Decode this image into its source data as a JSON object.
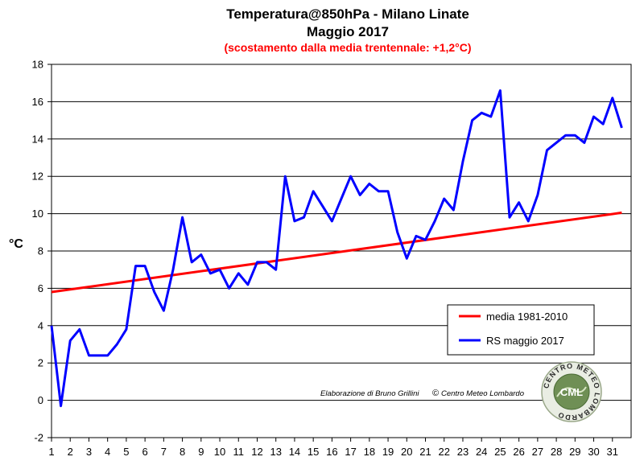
{
  "chart_data": {
    "type": "line",
    "title": "Temperatura@850hPa - Milano Linate",
    "title_line2": "Maggio 2017",
    "subtitle": "(scostamento dalla media trentennale: +1,2°C)",
    "ylabel": "°C",
    "xlabel": "",
    "ylim": [
      -2,
      18
    ],
    "yticks": [
      -2,
      0,
      2,
      4,
      6,
      8,
      10,
      12,
      14,
      16,
      18
    ],
    "x_ticks": [
      "1",
      "2",
      "3",
      "4",
      "5",
      "6",
      "7",
      "8",
      "9",
      "10",
      "11",
      "12",
      "13",
      "14",
      "15",
      "16",
      "17",
      "18",
      "19",
      "20",
      "21",
      "22",
      "23",
      "24",
      "25",
      "26",
      "27",
      "28",
      "29",
      "30",
      "31"
    ],
    "grid": "horizontal",
    "legend_position": "bottom-right",
    "series": [
      {
        "name": "media 1981-2010",
        "color": "#ff0000",
        "x": [
          1,
          31.5
        ],
        "y": [
          5.8,
          10.05
        ]
      },
      {
        "name": "RS maggio 2017",
        "color": "#0000ff",
        "x": [
          1,
          1.5,
          2,
          2.5,
          3,
          3.5,
          4,
          4.5,
          5,
          5.5,
          6,
          6.5,
          7,
          7.5,
          8,
          8.5,
          9,
          9.5,
          10,
          10.5,
          11,
          11.5,
          12,
          12.5,
          13,
          13.5,
          14,
          14.5,
          15,
          15.5,
          16,
          16.5,
          17,
          17.5,
          18,
          18.5,
          19,
          19.5,
          20,
          20.5,
          21,
          21.5,
          22,
          22.5,
          23,
          23.5,
          24,
          24.5,
          25,
          25.5,
          26,
          26.5,
          27,
          27.5,
          28,
          28.5,
          29,
          29.5,
          30,
          30.5,
          31,
          31.5
        ],
        "y": [
          4.0,
          -0.3,
          3.2,
          3.8,
          2.4,
          2.4,
          2.4,
          3.0,
          3.8,
          7.2,
          7.2,
          5.8,
          4.8,
          7.0,
          9.8,
          7.4,
          7.8,
          6.8,
          7.0,
          6.0,
          6.8,
          6.2,
          7.4,
          7.4,
          7.0,
          12.0,
          9.6,
          9.8,
          11.2,
          10.4,
          9.6,
          10.8,
          12.0,
          11.0,
          11.6,
          11.2,
          11.2,
          9.0,
          7.6,
          8.8,
          8.6,
          9.6,
          10.8,
          10.2,
          12.8,
          15.0,
          15.4,
          15.2,
          16.6,
          9.8,
          10.6,
          9.6,
          11.0,
          13.4,
          13.8,
          14.2,
          14.2,
          13.8,
          15.2,
          14.8,
          16.2,
          14.6
        ]
      }
    ]
  },
  "credit": "Elaborazione di Bruno Grillini",
  "credit_copyright": "©",
  "credit_org": "Centro Meteo Lombardo",
  "logo": {
    "acronym": "CML",
    "ring_text": "CENTRO METEO LOMBARDO"
  }
}
